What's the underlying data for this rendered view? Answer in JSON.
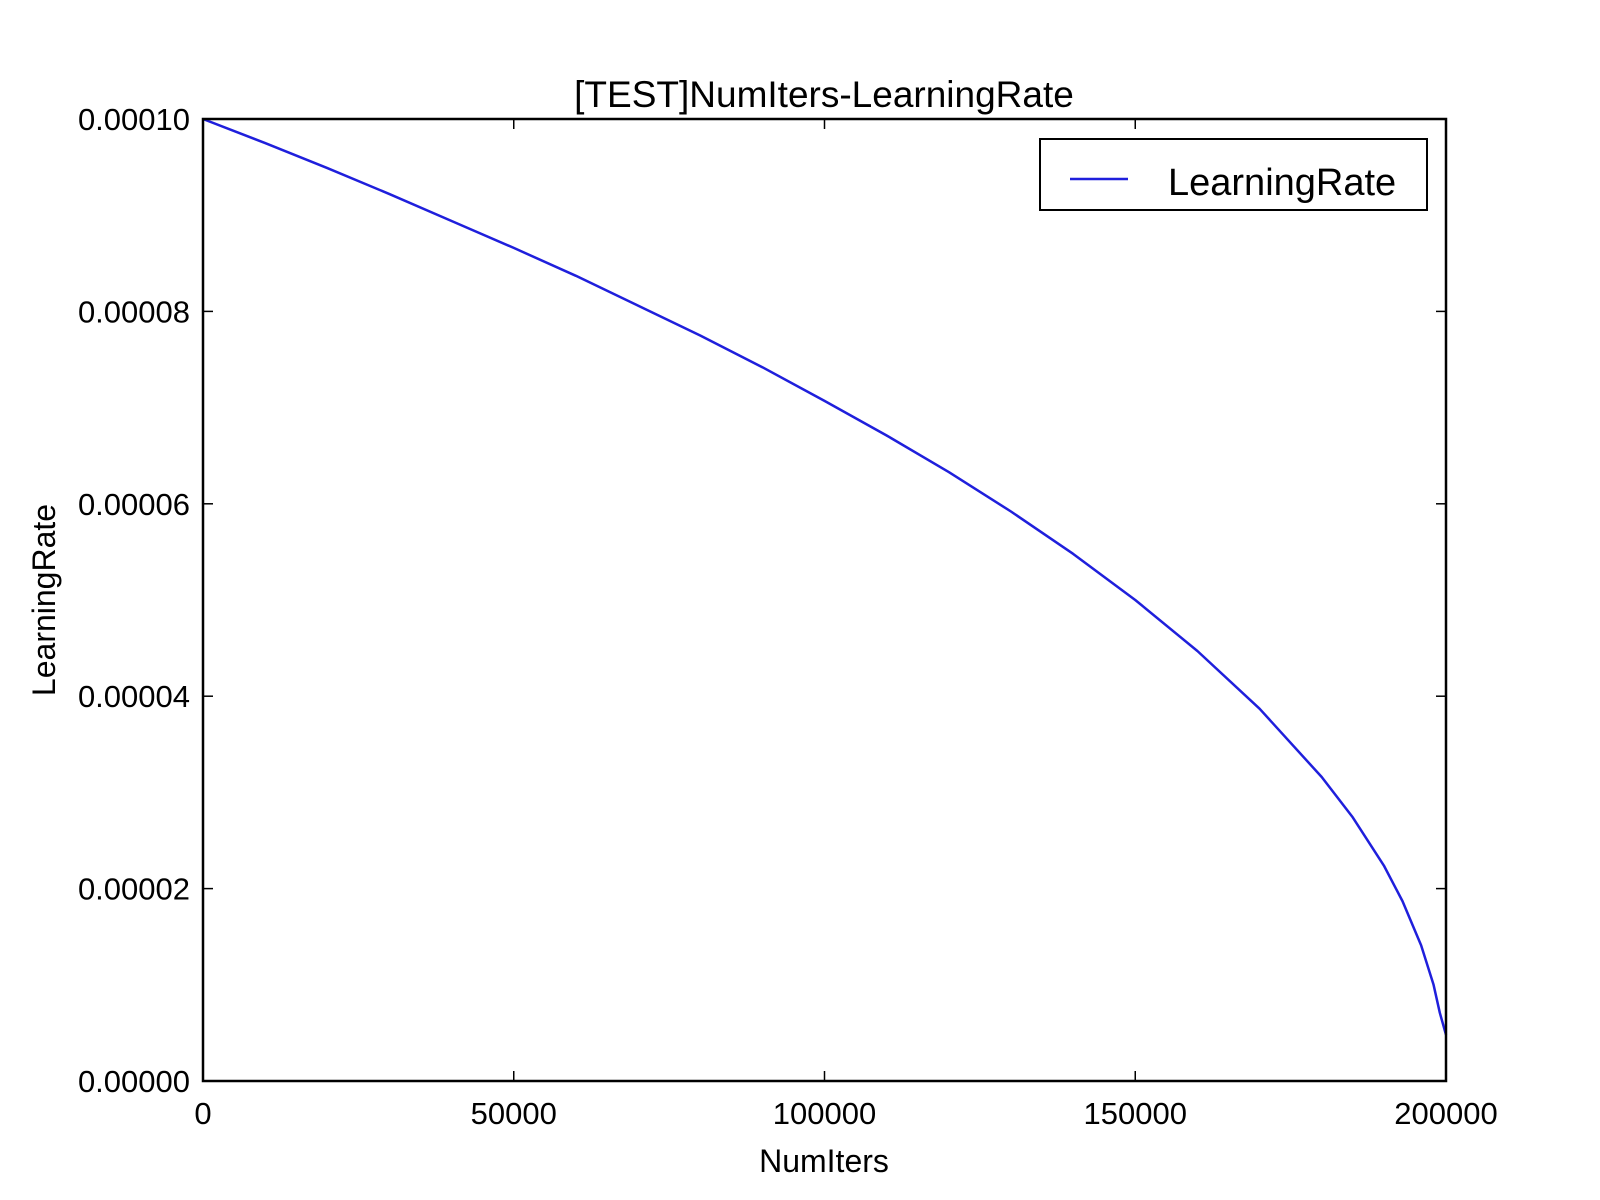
{
  "chart_data": {
    "type": "line",
    "title": "[TEST]NumIters-LearningRate",
    "xlabel": "NumIters",
    "ylabel": "LearningRate",
    "xlim": [
      0,
      200000
    ],
    "ylim": [
      0,
      0.0001
    ],
    "xticks": [
      0,
      50000,
      100000,
      150000,
      200000
    ],
    "xtick_labels": [
      "0",
      "50000",
      "100000",
      "150000",
      "200000"
    ],
    "yticks": [
      0,
      2e-05,
      4e-05,
      6e-05,
      8e-05,
      0.0001
    ],
    "ytick_labels": [
      "0.00000",
      "0.00002",
      "0.00004",
      "0.00006",
      "0.00008",
      "0.00010"
    ],
    "grid": false,
    "legend_position": "top-right",
    "series": [
      {
        "name": "LearningRate",
        "color": "#1f1fdc",
        "x": [
          0,
          10000,
          20000,
          30000,
          40000,
          50000,
          60000,
          70000,
          80000,
          90000,
          100000,
          110000,
          120000,
          130000,
          140000,
          150000,
          160000,
          170000,
          180000,
          185000,
          190000,
          193000,
          196000,
          198000,
          199000,
          200000
        ],
        "y": [
          0.0001,
          9.75e-05,
          9.49e-05,
          9.22e-05,
          8.94e-05,
          8.66e-05,
          8.37e-05,
          8.06e-05,
          7.75e-05,
          7.42e-05,
          7.07e-05,
          6.71e-05,
          6.33e-05,
          5.92e-05,
          5.48e-05,
          5e-05,
          4.47e-05,
          3.87e-05,
          3.16e-05,
          2.74e-05,
          2.24e-05,
          1.87e-05,
          1.41e-05,
          1e-05,
          7.1e-06,
          4.8e-06
        ]
      }
    ]
  }
}
